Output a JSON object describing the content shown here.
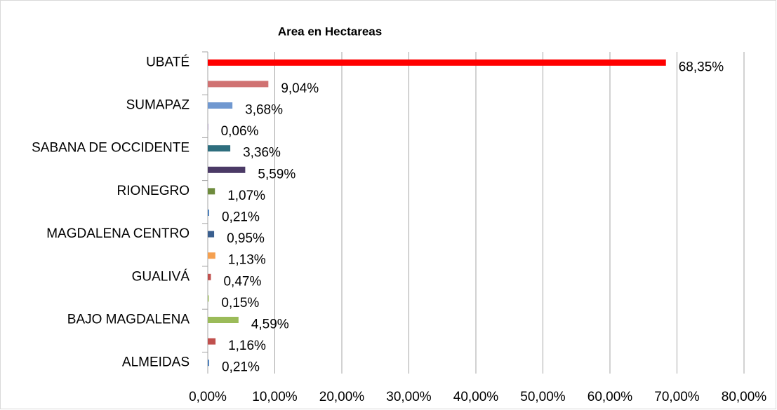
{
  "chart_data": {
    "type": "bar",
    "orientation": "horizontal",
    "title": "Area en Hectareas",
    "categories": [
      "UBATÉ",
      null,
      "SUMAPAZ",
      null,
      "SABANA DE OCCIDENTE",
      null,
      "RIONEGRO",
      null,
      "MAGDALENA CENTRO",
      null,
      "GUALIVÁ",
      null,
      "BAJO MAGDALENA",
      null,
      "ALMEIDAS"
    ],
    "values": [
      68.35,
      9.04,
      3.68,
      0.06,
      3.36,
      5.59,
      1.07,
      0.21,
      0.95,
      1.13,
      0.47,
      0.15,
      4.59,
      1.16,
      0.21
    ],
    "value_labels": [
      "68,35%",
      "9,04%",
      "3,68%",
      "0,06%",
      "3,36%",
      "5,59%",
      "1,07%",
      "0,21%",
      "0,95%",
      "1,13%",
      "0,47%",
      "0,15%",
      "4,59%",
      "1,16%",
      "0,21%"
    ],
    "colors": [
      "#ff0000",
      "#d07272",
      "#7098d0",
      "#8064a2",
      "#2e6e7e",
      "#4b3a66",
      "#6e8b3d",
      "#4f81bd",
      "#3a5f8f",
      "#f5a050",
      "#c0504d",
      "#9bbb59",
      "#9bbb59",
      "#c0504d",
      "#4f81bd"
    ],
    "xlim": [
      0,
      80
    ],
    "xticks": [
      {
        "value": 0,
        "label": "0,00%"
      },
      {
        "value": 10,
        "label": "10,00%"
      },
      {
        "value": 20,
        "label": "20,00%"
      },
      {
        "value": 30,
        "label": "30,00%"
      },
      {
        "value": 40,
        "label": "40,00%"
      },
      {
        "value": 50,
        "label": "50,00%"
      },
      {
        "value": 60,
        "label": "60,00%"
      },
      {
        "value": 70,
        "label": "70,00%"
      },
      {
        "value": 80,
        "label": "80,00%"
      }
    ],
    "grid": true
  }
}
